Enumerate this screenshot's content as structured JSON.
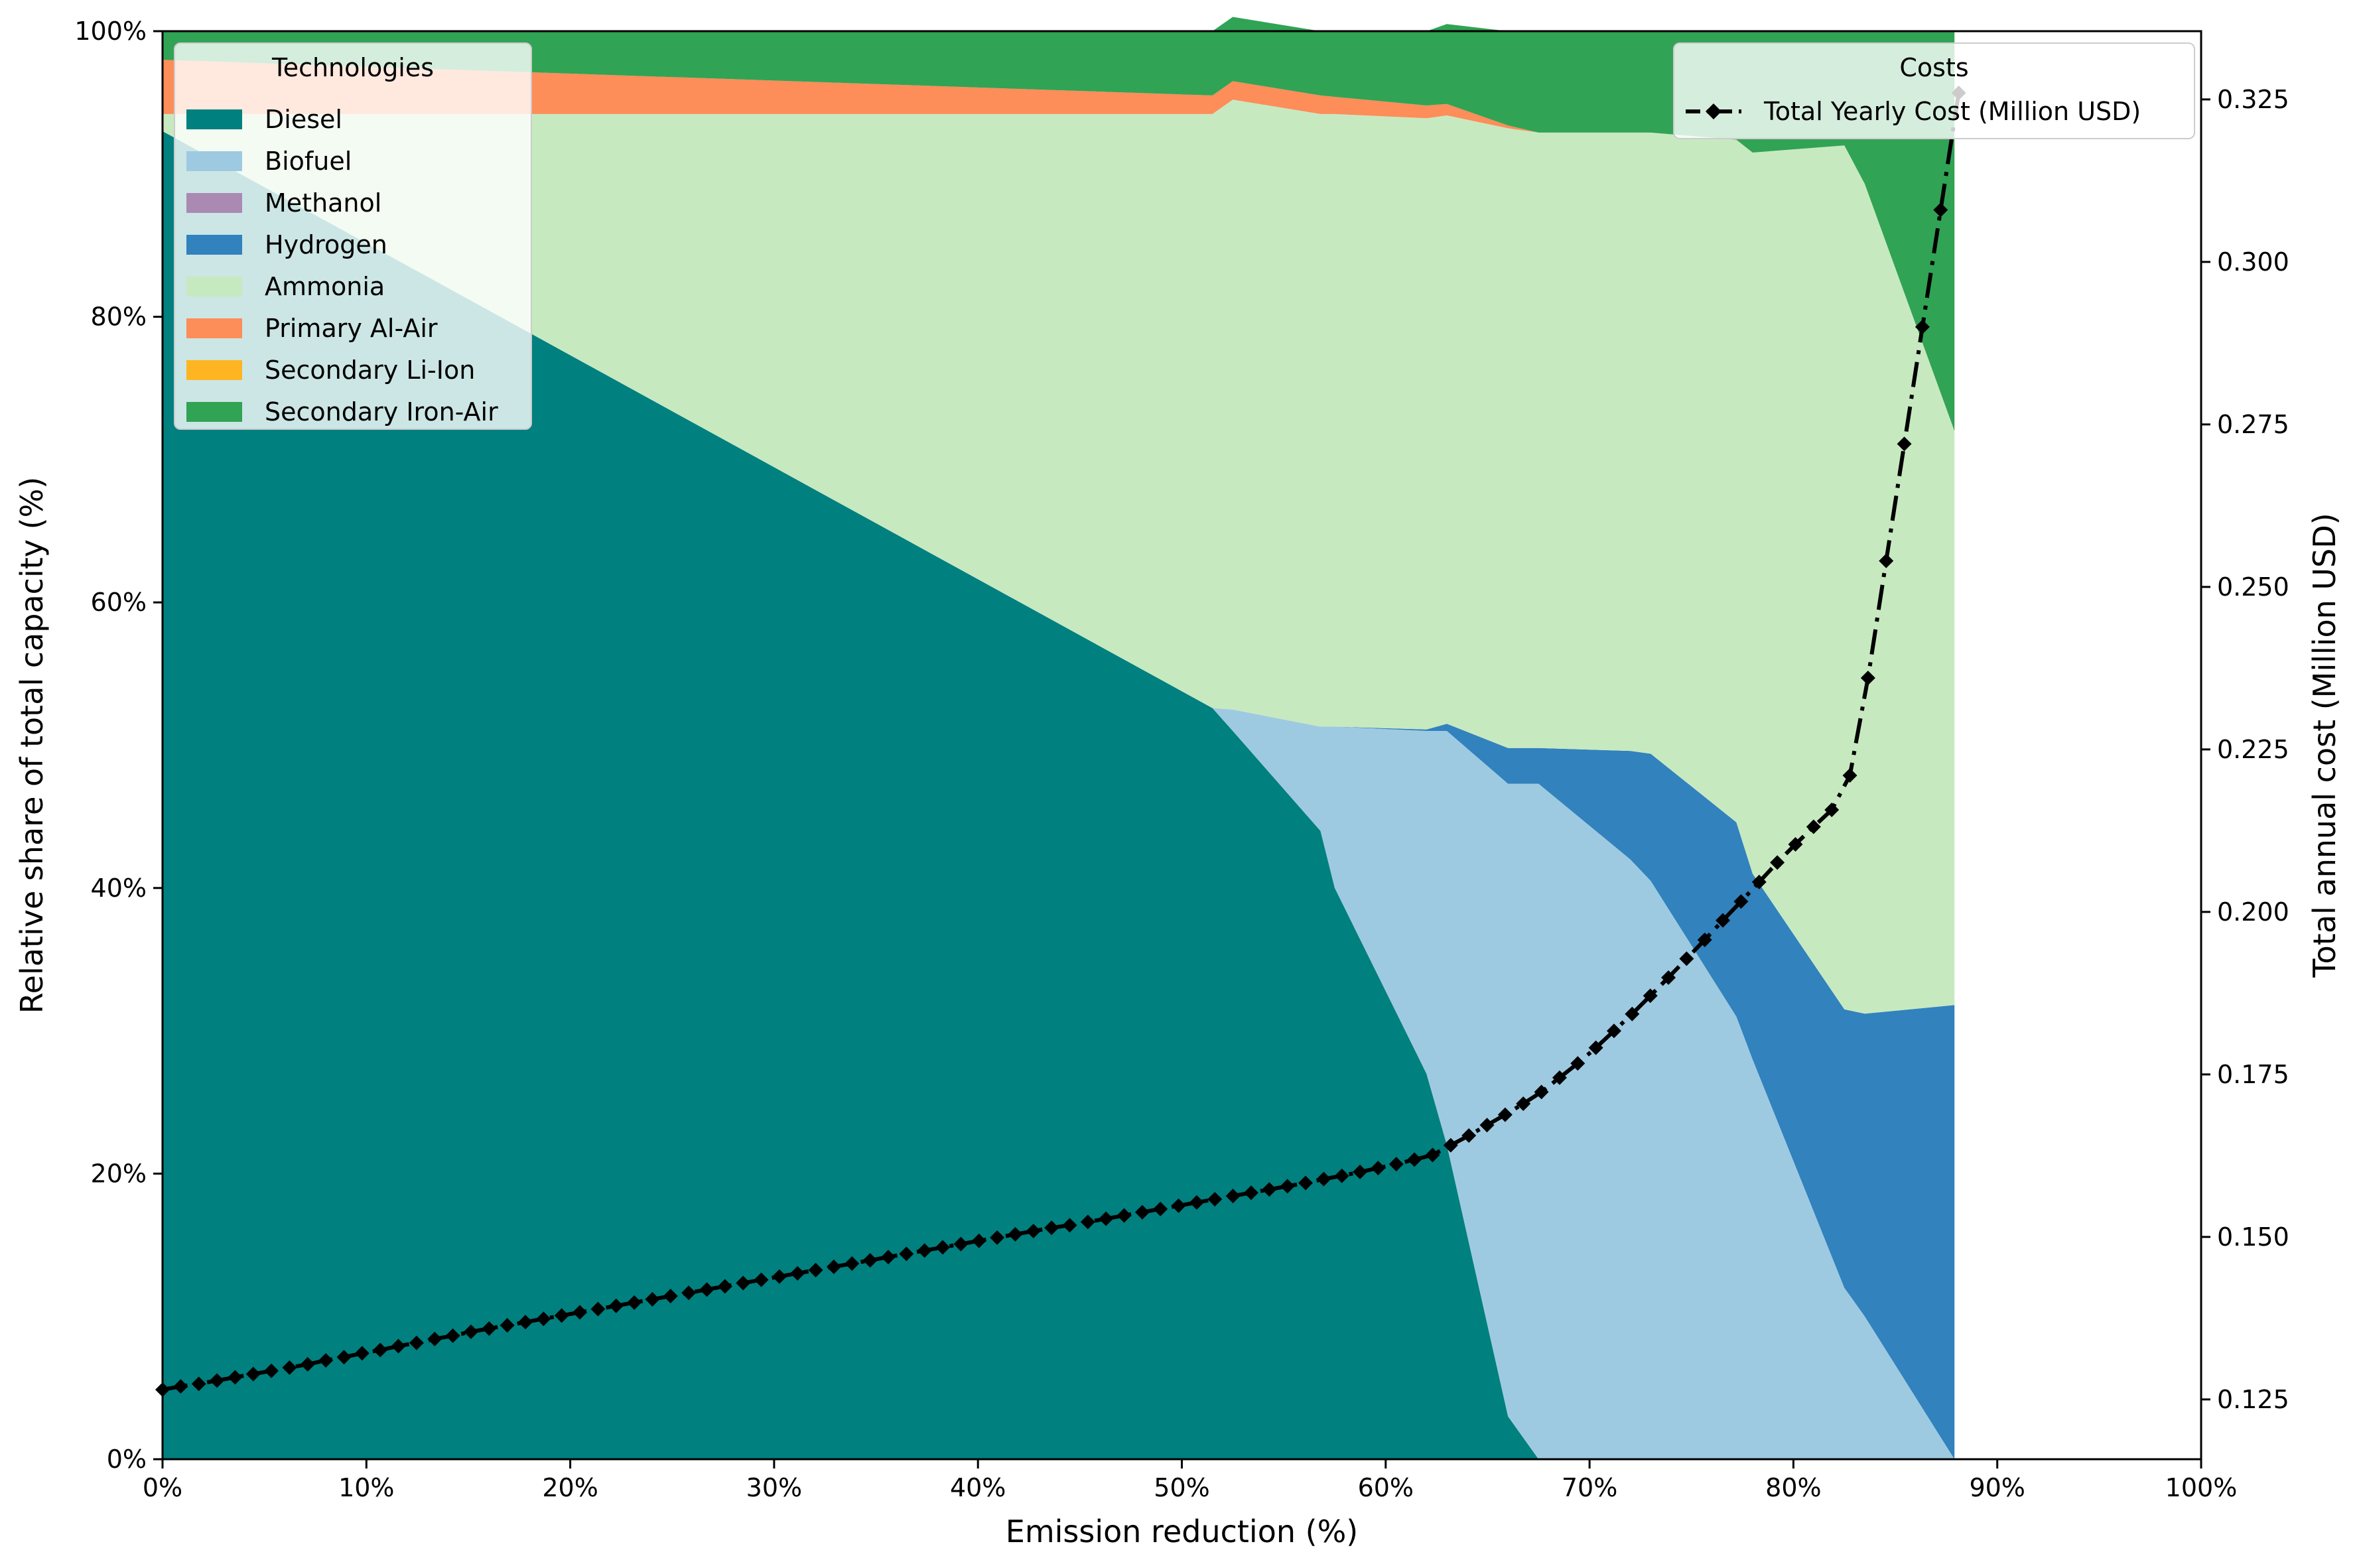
{
  "chart_data": {
    "type": "area",
    "subtype": "stacked-percent-area-with-secondary-line",
    "xlabel": "Emission reduction (%)",
    "ylabel": "Relative share of total capacity (%)",
    "y2label": "Total annual cost (Million USD)",
    "xlim": [
      0,
      100
    ],
    "ylim": [
      0,
      100
    ],
    "y2lim": [
      0.1158,
      0.3355
    ],
    "x_ticks": [
      0,
      10,
      20,
      30,
      40,
      50,
      60,
      70,
      80,
      90,
      100
    ],
    "x_tick_labels": [
      "0%",
      "10%",
      "20%",
      "30%",
      "40%",
      "50%",
      "60%",
      "70%",
      "80%",
      "90%",
      "100%"
    ],
    "y_ticks": [
      0,
      20,
      40,
      60,
      80,
      100
    ],
    "y_tick_labels": [
      "0%",
      "20%",
      "40%",
      "60%",
      "80%",
      "100%"
    ],
    "y2_ticks": [
      0.125,
      0.15,
      0.175,
      0.2,
      0.225,
      0.25,
      0.275,
      0.3,
      0.325
    ],
    "y2_tick_labels": [
      "0.125",
      "0.150",
      "0.175",
      "0.200",
      "0.225",
      "0.250",
      "0.275",
      "0.300",
      "0.325"
    ],
    "grid": false,
    "x": [
      0,
      51.5,
      52.5,
      56.8,
      57.5,
      62.0,
      63.0,
      66.0,
      67.5,
      72.0,
      73.0,
      77.2,
      78.0,
      82.5,
      83.5,
      87.9
    ],
    "series": [
      {
        "name": "Diesel",
        "color": "#00807f",
        "values": [
          93,
          52.6,
          51.0,
          44,
          40,
          27,
          22,
          3,
          0,
          0,
          0,
          0,
          0,
          0,
          0,
          0
        ]
      },
      {
        "name": "Biofuel",
        "color": "#9ecae1",
        "values": [
          0,
          0,
          1.5,
          7.3,
          11.3,
          24.0,
          29.0,
          44.3,
          47.3,
          42.0,
          40.5,
          31.0,
          28.0,
          12.0,
          10.0,
          0
        ]
      },
      {
        "name": "Methanol",
        "color": "#aa8ab3",
        "values": [
          0,
          0,
          0,
          0,
          0,
          0,
          0,
          0,
          0,
          0,
          0,
          0,
          0,
          0,
          0,
          0
        ]
      },
      {
        "name": "Hydrogen",
        "color": "#3182bd",
        "values": [
          0,
          0,
          0,
          0,
          0,
          0.1,
          0.5,
          2.5,
          2.5,
          7.6,
          8.9,
          13.6,
          13.0,
          19.5,
          21.2,
          31.8
        ]
      },
      {
        "name": "Ammonia",
        "color": "#c7e9c0",
        "values": [
          1.2,
          41.6,
          42.7,
          42.9,
          42.9,
          42.8,
          42.6,
          43.4,
          43.1,
          43.3,
          43.5,
          47.8,
          50.5,
          60.5,
          58.1,
          40.2
        ]
      },
      {
        "name": "Primary Al-Air",
        "color": "#fd8d59",
        "values": [
          3.8,
          1.3,
          1.3,
          1.3,
          1.2,
          0.9,
          0.8,
          0.2,
          0,
          0,
          0,
          0,
          0,
          0,
          0,
          0
        ]
      },
      {
        "name": "Secondary Li-Ion",
        "color": "#ffb521",
        "values": [
          0,
          0,
          0,
          0,
          0,
          0,
          0,
          0,
          0,
          0,
          0,
          0,
          0,
          0,
          0,
          0
        ]
      },
      {
        "name": "Secondary Iron-Air",
        "color": "#31a354",
        "values": [
          2.0,
          4.5,
          4.5,
          4.5,
          4.6,
          5.2,
          5.6,
          6.6,
          7.1,
          7.1,
          7.1,
          7.6,
          8.5,
          8.0,
          10.7,
          28.0
        ]
      }
    ],
    "cost_series": {
      "name": "Total Yearly Cost (Million USD)",
      "color": "#000000",
      "line_style": "dashdot",
      "marker": "diamond",
      "x": [
        0.0,
        0.89,
        1.78,
        2.67,
        3.56,
        4.45,
        5.34,
        6.23,
        7.12,
        8.01,
        8.9,
        9.79,
        10.68,
        11.57,
        12.46,
        13.35,
        14.24,
        15.13,
        16.02,
        16.91,
        17.8,
        18.69,
        19.58,
        20.47,
        21.36,
        22.25,
        23.14,
        24.03,
        24.92,
        25.81,
        26.7,
        27.59,
        28.48,
        29.37,
        30.26,
        31.15,
        32.04,
        32.93,
        33.82,
        34.71,
        35.6,
        36.49,
        37.38,
        38.27,
        39.16,
        40.05,
        40.94,
        41.83,
        42.72,
        43.61,
        44.5,
        45.39,
        46.28,
        47.17,
        48.06,
        48.95,
        49.84,
        50.73,
        51.62,
        52.51,
        53.4,
        54.29,
        55.18,
        56.07,
        56.96,
        57.85,
        58.74,
        59.63,
        60.52,
        61.41,
        62.3,
        63.19,
        64.08,
        64.97,
        65.86,
        66.75,
        67.64,
        68.53,
        69.42,
        70.31,
        71.2,
        72.09,
        72.98,
        73.87,
        74.76,
        75.65,
        76.54,
        77.43,
        78.32,
        79.21,
        80.1,
        80.99,
        81.88,
        82.77,
        83.66,
        84.55,
        85.44,
        86.33,
        87.22,
        88.11
      ],
      "values": [
        0.1265,
        0.127,
        0.1274,
        0.1279,
        0.1284,
        0.1289,
        0.1294,
        0.1299,
        0.1304,
        0.131,
        0.1315,
        0.1321,
        0.1326,
        0.1332,
        0.1337,
        0.1343,
        0.1348,
        0.1354,
        0.1359,
        0.1364,
        0.1369,
        0.1374,
        0.1379,
        0.1384,
        0.1389,
        0.1394,
        0.1399,
        0.1404,
        0.1409,
        0.1414,
        0.1419,
        0.1424,
        0.1429,
        0.1434,
        0.1439,
        0.1444,
        0.1449,
        0.1454,
        0.1459,
        0.1464,
        0.1469,
        0.1474,
        0.1479,
        0.1484,
        0.1489,
        0.1494,
        0.1499,
        0.1504,
        0.1509,
        0.1514,
        0.1518,
        0.1523,
        0.1528,
        0.1533,
        0.1538,
        0.1543,
        0.1548,
        0.1553,
        0.1558,
        0.1563,
        0.1568,
        0.1573,
        0.1578,
        0.1583,
        0.1589,
        0.1594,
        0.16,
        0.1606,
        0.1612,
        0.1619,
        0.1626,
        0.1641,
        0.1656,
        0.1672,
        0.1688,
        0.1705,
        0.1723,
        0.1745,
        0.1767,
        0.1791,
        0.1817,
        0.1843,
        0.1871,
        0.1899,
        0.1928,
        0.1957,
        0.1987,
        0.2016,
        0.2046,
        0.2076,
        0.2104,
        0.2131,
        0.2157,
        0.221,
        0.236,
        0.254,
        0.272,
        0.29,
        0.308,
        0.326
      ]
    },
    "legends": [
      {
        "title": "Technologies",
        "placement": "upper-left",
        "entries": [
          "Diesel",
          "Biofuel",
          "Methanol",
          "Hydrogen",
          "Ammonia",
          "Primary Al-Air",
          "Secondary Li-Ion",
          "Secondary Iron-Air"
        ]
      },
      {
        "title": "Costs",
        "placement": "upper-right",
        "entries": [
          "Total Yearly Cost (Million USD)"
        ]
      }
    ]
  }
}
